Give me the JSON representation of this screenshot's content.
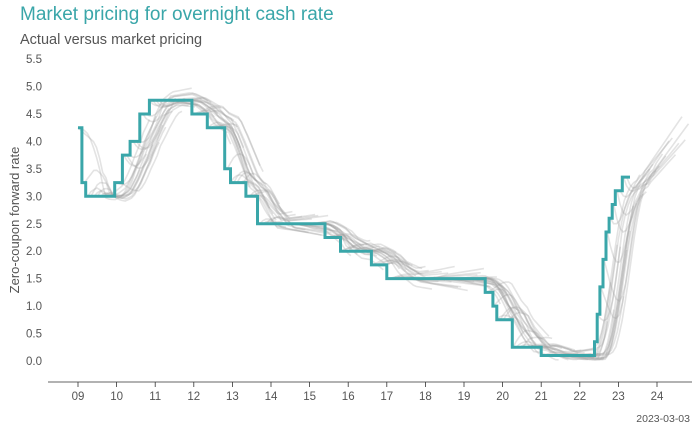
{
  "chart_data": {
    "type": "line",
    "title": "Market pricing for overnight cash rate",
    "subtitle": "Actual versus market pricing",
    "ylabel": "Zero-coupon forward rate",
    "xlabel": "",
    "date_note": "2023-03-03",
    "x_ticks": [
      "09",
      "10",
      "11",
      "12",
      "13",
      "14",
      "15",
      "16",
      "17",
      "18",
      "19",
      "20",
      "21",
      "22",
      "23",
      "24"
    ],
    "y_ticks": [
      "0.0",
      "0.5",
      "1.0",
      "1.5",
      "2.0",
      "2.5",
      "3.0",
      "3.5",
      "4.0",
      "4.5",
      "5.0",
      "5.5"
    ],
    "xlim": [
      2008.5,
      2024.6
    ],
    "ylim": [
      -0.3,
      5.5
    ],
    "grid": false,
    "series": [
      {
        "role": "actual",
        "color": "#3aa6a9",
        "style": "step",
        "x": [
          2009.0,
          2009.1,
          2009.2,
          2009.3,
          2009.85,
          2009.95,
          2010.15,
          2010.35,
          2010.6,
          2010.85,
          2011.8,
          2011.95,
          2012.35,
          2012.45,
          2012.8,
          2012.95,
          2013.35,
          2013.65,
          2014.0,
          2015.1,
          2015.4,
          2015.8,
          2016.35,
          2016.6,
          2017.0,
          2018.0,
          2019.0,
          2019.45,
          2019.55,
          2019.75,
          2019.85,
          2020.25,
          2020.9,
          2021.0,
          2022.3,
          2022.38,
          2022.45,
          2022.52,
          2022.6,
          2022.68,
          2022.76,
          2022.84,
          2022.92,
          2023.0,
          2023.1,
          2023.2,
          2023.3
        ],
        "y": [
          4.25,
          3.25,
          3.0,
          3.0,
          3.0,
          3.25,
          3.75,
          4.0,
          4.5,
          4.75,
          4.75,
          4.5,
          4.25,
          4.25,
          3.5,
          3.25,
          3.0,
          2.5,
          2.5,
          2.5,
          2.25,
          2.0,
          2.0,
          1.75,
          1.5,
          1.5,
          1.5,
          1.5,
          1.25,
          1.0,
          0.75,
          0.25,
          0.25,
          0.1,
          0.1,
          0.35,
          0.85,
          1.35,
          1.85,
          2.35,
          2.6,
          2.85,
          3.1,
          3.1,
          3.35,
          3.35,
          3.35
        ]
      }
    ],
    "pricing_curves": {
      "role": "market pricing",
      "color": "#9a9a9a",
      "opacity": 0.28,
      "count": 170,
      "horizon_years": 1.6
    }
  }
}
